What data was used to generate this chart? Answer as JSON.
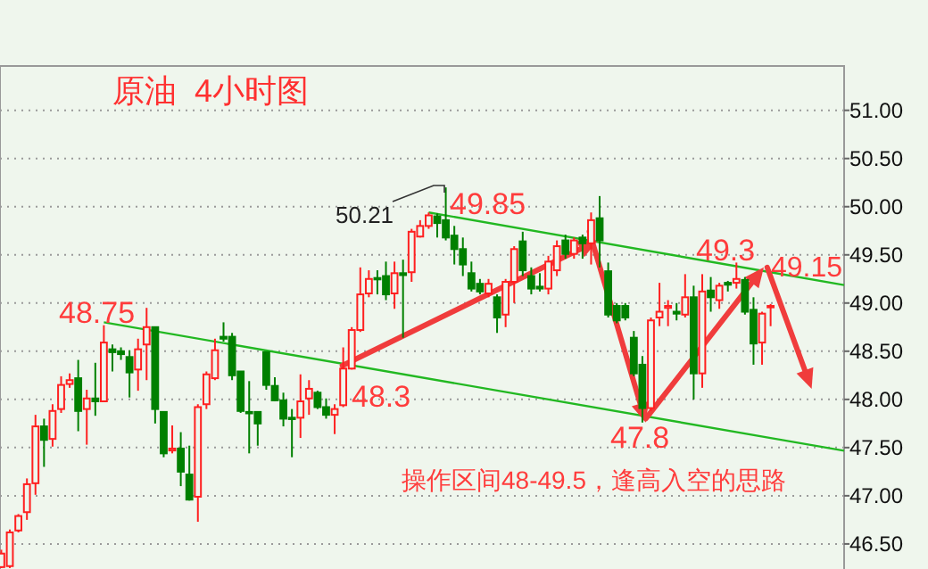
{
  "chart_data": {
    "type": "candlestick",
    "title": "原油  4小时图",
    "categories": [
      null,
      null,
      null,
      null,
      null,
      null,
      null,
      null,
      null,
      null,
      null,
      null,
      null,
      null,
      null,
      null,
      null,
      null,
      null,
      null,
      null,
      null,
      null,
      null,
      null,
      null,
      null,
      null,
      null,
      null,
      null,
      null,
      null,
      null,
      null,
      null,
      null,
      null,
      null,
      null,
      null,
      null,
      null,
      null,
      null,
      null,
      null,
      null,
      null,
      null,
      null,
      null,
      null,
      null,
      null,
      null,
      null,
      null,
      null,
      null,
      null,
      null,
      null,
      null,
      null,
      null,
      null,
      null,
      null,
      null,
      null,
      null,
      null,
      null,
      null,
      null,
      null,
      null,
      null,
      null,
      null,
      null,
      null,
      null,
      null,
      null,
      null,
      null,
      null,
      null,
      null
    ],
    "ohlc": [
      [
        46.26,
        46.44,
        46.25,
        46.4
      ],
      [
        46.27,
        46.65,
        46.25,
        46.62
      ],
      [
        46.64,
        46.81,
        46.62,
        46.79
      ],
      [
        46.83,
        47.18,
        46.75,
        47.12
      ],
      [
        47.13,
        47.84,
        47.01,
        47.72
      ],
      [
        47.72,
        47.8,
        47.3,
        47.58
      ],
      [
        47.59,
        47.95,
        47.51,
        47.88
      ],
      [
        47.9,
        48.24,
        47.86,
        48.15
      ],
      [
        48.16,
        48.27,
        48.12,
        48.2
      ],
      [
        48.22,
        48.41,
        47.67,
        47.88
      ],
      [
        47.9,
        48.1,
        47.53,
        48.01
      ],
      [
        48.01,
        48.38,
        47.83,
        47.98
      ],
      [
        47.98,
        48.77,
        47.98,
        48.59
      ],
      [
        48.52,
        48.57,
        48.29,
        48.49
      ],
      [
        48.5,
        48.54,
        48.41,
        48.47
      ],
      [
        48.44,
        48.51,
        48.02,
        48.28
      ],
      [
        48.31,
        48.63,
        48.09,
        48.52
      ],
      [
        48.57,
        48.95,
        48.2,
        48.75
      ],
      [
        48.75,
        48.75,
        47.75,
        47.9
      ],
      [
        47.87,
        47.87,
        47.4,
        47.44
      ],
      [
        47.47,
        47.73,
        47.44,
        47.49
      ],
      [
        47.49,
        47.66,
        47.1,
        47.25
      ],
      [
        47.22,
        47.52,
        46.95,
        46.96
      ],
      [
        46.99,
        47.95,
        46.73,
        47.92
      ],
      [
        47.95,
        48.29,
        47.9,
        48.26
      ],
      [
        48.22,
        48.63,
        48.2,
        48.51
      ],
      [
        48.65,
        48.8,
        48.6,
        48.63
      ],
      [
        48.65,
        48.69,
        48.2,
        48.25
      ],
      [
        48.29,
        48.29,
        47.86,
        47.88
      ],
      [
        47.87,
        48.19,
        47.44,
        47.86
      ],
      [
        47.87,
        47.87,
        47.52,
        47.75
      ],
      [
        48.49,
        48.49,
        48.1,
        48.15
      ],
      [
        48.14,
        48.23,
        47.98,
        47.99
      ],
      [
        47.99,
        48.07,
        47.72,
        47.8
      ],
      [
        47.81,
        47.9,
        47.4,
        47.8
      ],
      [
        47.81,
        48.26,
        47.6,
        47.98
      ],
      [
        48.01,
        48.2,
        47.84,
        48.11
      ],
      [
        48.07,
        48.09,
        47.9,
        47.92
      ],
      [
        47.92,
        48.01,
        47.8,
        47.84
      ],
      [
        47.84,
        47.95,
        47.64,
        47.9
      ],
      [
        47.94,
        48.54,
        47.92,
        48.32
      ],
      [
        48.32,
        48.75,
        48.31,
        48.72
      ],
      [
        48.72,
        49.37,
        48.7,
        49.09
      ],
      [
        49.1,
        49.34,
        49.06,
        49.25
      ],
      [
        49.26,
        49.34,
        49.09,
        49.25
      ],
      [
        49.28,
        49.43,
        49.03,
        49.09
      ],
      [
        49.1,
        49.43,
        48.94,
        49.31
      ],
      [
        49.31,
        49.45,
        48.64,
        49.29
      ],
      [
        49.32,
        49.77,
        49.22,
        49.74
      ],
      [
        49.69,
        49.86,
        49.68,
        49.8
      ],
      [
        49.8,
        49.94,
        49.77,
        49.91
      ],
      [
        49.9,
        49.93,
        49.68,
        49.83
      ],
      [
        49.86,
        50.2,
        49.65,
        49.68
      ],
      [
        49.7,
        49.8,
        49.4,
        49.56
      ],
      [
        49.56,
        49.68,
        49.28,
        49.4
      ],
      [
        49.31,
        49.43,
        49.12,
        49.15
      ],
      [
        49.2,
        49.25,
        49.09,
        49.12
      ],
      [
        49.1,
        49.25,
        49.06,
        49.2
      ],
      [
        49.06,
        49.09,
        48.69,
        48.85
      ],
      [
        48.88,
        49.25,
        48.75,
        49.22
      ],
      [
        49.22,
        49.59,
        49.0,
        49.56
      ],
      [
        49.64,
        49.74,
        49.28,
        49.34
      ],
      [
        49.28,
        49.37,
        49.09,
        49.15
      ],
      [
        49.17,
        49.31,
        49.12,
        49.15
      ],
      [
        49.15,
        49.49,
        49.09,
        49.43
      ],
      [
        49.34,
        49.65,
        49.28,
        49.59
      ],
      [
        49.65,
        49.71,
        49.46,
        49.51
      ],
      [
        49.51,
        49.68,
        49.46,
        49.65
      ],
      [
        49.68,
        49.71,
        49.46,
        49.62
      ],
      [
        49.62,
        49.94,
        49.4,
        49.86
      ],
      [
        49.88,
        50.11,
        49.37,
        49.65
      ],
      [
        49.33,
        49.42,
        48.85,
        48.88
      ],
      [
        48.97,
        49.0,
        48.79,
        48.82
      ],
      [
        48.97,
        49.0,
        48.82,
        48.85
      ],
      [
        48.64,
        48.71,
        48.24,
        48.27
      ],
      [
        48.36,
        48.45,
        47.76,
        47.91
      ],
      [
        47.91,
        48.85,
        47.88,
        48.82
      ],
      [
        48.85,
        49.21,
        48.76,
        48.91
      ],
      [
        48.95,
        49.03,
        48.76,
        48.97
      ],
      [
        48.91,
        49.0,
        48.82,
        48.89
      ],
      [
        48.88,
        49.3,
        48.85,
        49.06
      ],
      [
        49.06,
        49.18,
        48.0,
        48.27
      ],
      [
        48.27,
        49.3,
        48.12,
        49.12
      ],
      [
        49.13,
        49.27,
        48.91,
        49.06
      ],
      [
        49.03,
        49.21,
        48.94,
        49.18
      ],
      [
        49.21,
        49.23,
        49.12,
        49.19
      ],
      [
        49.21,
        49.42,
        49.15,
        49.25
      ],
      [
        49.24,
        49.27,
        48.88,
        48.91
      ],
      [
        48.93,
        49.06,
        48.36,
        48.58
      ],
      [
        48.59,
        48.91,
        48.36,
        48.89
      ],
      [
        48.96,
        48.99,
        48.76,
        48.97
      ]
    ],
    "colors": [
      "#ff2020",
      "#ff2020",
      "#ff2020",
      "#ff2020",
      "#ff2020",
      "#008000",
      "#ff2020",
      "#ff2020",
      "#ff2020",
      "#008000",
      "#ff2020",
      "#008000",
      "#ff2020",
      "#008000",
      "#008000",
      "#008000",
      "#ff2020",
      "#ff2020",
      "#008000",
      "#008000",
      "#ff2020",
      "#008000",
      "#008000",
      "#ff2020",
      "#ff2020",
      "#ff2020",
      "#008000",
      "#008000",
      "#008000",
      "#008000",
      "#008000",
      "#008000",
      "#008000",
      "#008000",
      "#008000",
      "#ff2020",
      "#ff2020",
      "#008000",
      "#008000",
      "#ff2020",
      "#ff2020",
      "#ff2020",
      "#ff2020",
      "#ff2020",
      "#008000",
      "#008000",
      "#ff2020",
      "#008000",
      "#ff2020",
      "#ff2020",
      "#ff2020",
      "#008000",
      "#008000",
      "#008000",
      "#008000",
      "#008000",
      "#008000",
      "#ff2020",
      "#008000",
      "#ff2020",
      "#ff2020",
      "#008000",
      "#008000",
      "#008000",
      "#ff2020",
      "#ff2020",
      "#008000",
      "#ff2020",
      "#008000",
      "#ff2020",
      "#008000",
      "#008000",
      "#008000",
      "#008000",
      "#008000",
      "#008000",
      "#ff2020",
      "#ff2020",
      "#ff2020",
      "#008000",
      "#ff2020",
      "#008000",
      "#ff2020",
      "#008000",
      "#ff2020",
      "#008000",
      "#ff2020",
      "#008000",
      "#008000",
      "#ff2020",
      "#ff2020"
    ],
    "series": [
      {
        "type": "line",
        "values": [
          null,
          null,
          null,
          null,
          null,
          null,
          null,
          null,
          null,
          null,
          null,
          null,
          48.8,
          null,
          null,
          null,
          null,
          null,
          null,
          null,
          null,
          null,
          null,
          null,
          null,
          null,
          null,
          null,
          null,
          null,
          null,
          null,
          null,
          null,
          null,
          null,
          null,
          null,
          null,
          null,
          null,
          null,
          null,
          null,
          null,
          null,
          null,
          null,
          null,
          null,
          null,
          null,
          null,
          null,
          null,
          null,
          null,
          null,
          null,
          null,
          null,
          null,
          null,
          null,
          null,
          null,
          null,
          null,
          null,
          null,
          null,
          null,
          null,
          null,
          null,
          null,
          null,
          null,
          null,
          null,
          null,
          null,
          null,
          null,
          null,
          null,
          null,
          null,
          null,
          null,
          47.6
        ],
        "color": "#22b822"
      },
      {
        "type": "line",
        "values": [
          null,
          null,
          null,
          null,
          null,
          null,
          null,
          null,
          null,
          null,
          null,
          null,
          null,
          null,
          null,
          null,
          null,
          null,
          null,
          null,
          null,
          null,
          null,
          null,
          null,
          null,
          null,
          null,
          null,
          null,
          null,
          null,
          null,
          null,
          null,
          null,
          null,
          null,
          null,
          null,
          null,
          null,
          null,
          null,
          null,
          null,
          null,
          null,
          null,
          null,
          49.94,
          null,
          null,
          null,
          null,
          null,
          null,
          null,
          null,
          null,
          null,
          null,
          null,
          null,
          null,
          null,
          null,
          null,
          null,
          null,
          null,
          null,
          null,
          null,
          null,
          null,
          null,
          null,
          null,
          null,
          null,
          null,
          null,
          null,
          null,
          null,
          null,
          null,
          null,
          null,
          49.32
        ],
        "color": "#22b822"
      }
    ],
    "ylim": [
      46.24,
      51.46
    ],
    "yticks": [
      {
        "value": 46.5,
        "label": "46.50"
      },
      {
        "value": 47,
        "label": "47.00"
      },
      {
        "value": 47.5,
        "label": "47.50"
      },
      {
        "value": 48,
        "label": "48.00"
      },
      {
        "value": 48.5,
        "label": "48.50"
      },
      {
        "value": 49,
        "label": "49.00"
      },
      {
        "value": 49.5,
        "label": "49.50"
      },
      {
        "value": 50,
        "label": "50.00"
      },
      {
        "value": 50.5,
        "label": "50.50"
      },
      {
        "value": 51,
        "label": "51.00"
      }
    ],
    "grid": "y",
    "tick_labels": "y",
    "annotations": [
      "48.75",
      "50.21",
      "49.85",
      "48.3",
      "49.3",
      "49.15",
      "47.8",
      "操作区间48-49.5，逢高入空的思路"
    ]
  }
}
